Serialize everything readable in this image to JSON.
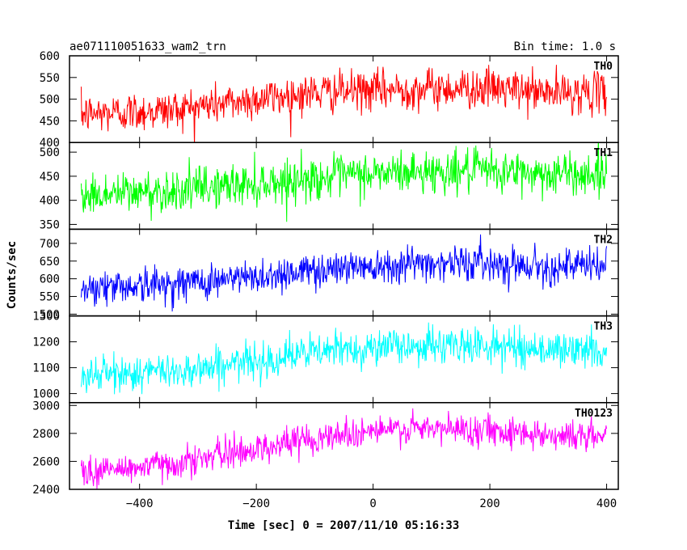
{
  "chart_data": {
    "type": "line",
    "title_left": "ae071110051633_wam2_trn",
    "title_right": "Bin time: 1.0 s",
    "xlabel": "Time [sec] 0 = 2007/11/10 05:16:33",
    "ylabel": "Counts/sec",
    "xlim": [
      -520,
      420
    ],
    "x_ticks": [
      -400,
      -200,
      0,
      200,
      400
    ],
    "x_tick_labels": [
      "−400",
      "−200",
      "0",
      "200",
      "400"
    ],
    "x_data_range": [
      -500,
      400
    ],
    "panels": [
      {
        "name": "TH0",
        "color": "#ff0000",
        "ylim": [
          400,
          600
        ],
        "y_ticks": [
          400,
          450,
          500,
          550,
          600
        ],
        "y_tick_labels": [
          "400",
          "450",
          "500",
          "550",
          "600"
        ],
        "trend_x": [
          -500,
          -350,
          -200,
          -100,
          0,
          100,
          200,
          300,
          400
        ],
        "trend_y": [
          465,
          475,
          500,
          515,
          520,
          525,
          525,
          515,
          515
        ],
        "noise_sd": 23
      },
      {
        "name": "TH1",
        "color": "#00ff00",
        "ylim": [
          340,
          520
        ],
        "y_ticks": [
          350,
          400,
          450,
          500
        ],
        "y_tick_labels": [
          "350",
          "400",
          "450",
          "500"
        ],
        "trend_x": [
          -500,
          -350,
          -200,
          -100,
          0,
          100,
          200,
          300,
          400
        ],
        "trend_y": [
          410,
          420,
          435,
          445,
          455,
          460,
          460,
          455,
          455
        ],
        "noise_sd": 22
      },
      {
        "name": "TH2",
        "color": "#0000ff",
        "ylim": [
          495,
          740
        ],
        "y_ticks": [
          500,
          550,
          600,
          650,
          700
        ],
        "y_tick_labels": [
          "500",
          "550",
          "600",
          "650",
          "700"
        ],
        "trend_x": [
          -500,
          -350,
          -200,
          -100,
          0,
          100,
          200,
          300,
          400
        ],
        "trend_y": [
          575,
          585,
          605,
          625,
          640,
          645,
          645,
          635,
          635
        ],
        "noise_sd": 25
      },
      {
        "name": "TH3",
        "color": "#00ffff",
        "ylim": [
          965,
          1300
        ],
        "y_ticks": [
          1000,
          1100,
          1200,
          1300
        ],
        "y_tick_labels": [
          "1000",
          "1100",
          "1200",
          "1300"
        ],
        "trend_x": [
          -500,
          -350,
          -200,
          -100,
          0,
          100,
          200,
          300,
          400
        ],
        "trend_y": [
          1070,
          1085,
          1125,
          1160,
          1180,
          1185,
          1185,
          1170,
          1165
        ],
        "noise_sd": 35
      },
      {
        "name": "TH0123",
        "color": "#ff00ff",
        "ylim": [
          2400,
          3020
        ],
        "y_ticks": [
          2400,
          2600,
          2800,
          3000
        ],
        "y_tick_labels": [
          "2400",
          "2600",
          "2800",
          "3000"
        ],
        "trend_x": [
          -500,
          -350,
          -200,
          -100,
          0,
          100,
          200,
          300,
          400
        ],
        "trend_y": [
          2520,
          2580,
          2690,
          2770,
          2820,
          2830,
          2830,
          2790,
          2775
        ],
        "noise_sd": 55
      }
    ]
  }
}
